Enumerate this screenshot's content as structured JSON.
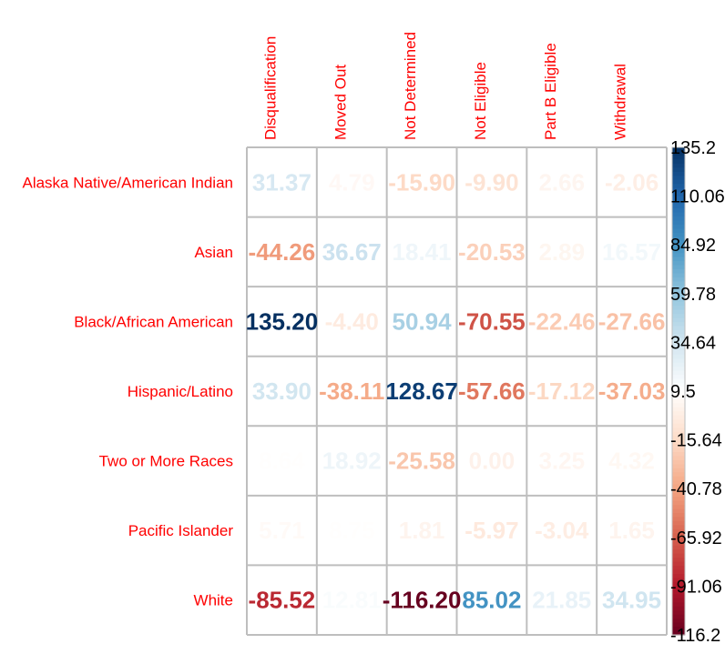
{
  "chart_data": {
    "type": "heatmap",
    "title": "",
    "columns": [
      "Disqualification",
      "Moved Out",
      "Not Determined",
      "Not Eligible",
      "Part B Eligible",
      "Withdrawal"
    ],
    "rows": [
      "Alaska Native/American Indian",
      "Asian",
      "Black/African American",
      "Hispanic/Latino",
      "Two or More Races",
      "Pacific Islander",
      "White"
    ],
    "values": [
      [
        31.37,
        4.79,
        -15.9,
        -9.9,
        2.66,
        -2.06
      ],
      [
        -44.26,
        36.67,
        18.41,
        -20.53,
        2.89,
        16.57
      ],
      [
        135.2,
        -4.4,
        50.94,
        -70.55,
        -22.46,
        -27.66
      ],
      [
        33.9,
        -38.11,
        128.67,
        -57.66,
        -17.12,
        -37.03
      ],
      [
        8.64,
        18.92,
        -25.58,
        0.0,
        3.25,
        4.32
      ],
      [
        5.71,
        8.75,
        1.81,
        -5.97,
        -3.04,
        1.65
      ],
      [
        -85.52,
        12.81,
        -116.2,
        85.02,
        21.85,
        34.95
      ]
    ],
    "display_values": [
      [
        "31.37",
        "4.79",
        "-15.90",
        "-9.90",
        "2.66",
        "-2.06"
      ],
      [
        "-44.26",
        "36.67",
        "18.41",
        "-20.53",
        "2.89",
        "16.57"
      ],
      [
        "135.20",
        "-4.40",
        "50.94",
        "-70.55",
        "-22.46",
        "-27.66"
      ],
      [
        "33.90",
        "-38.11",
        "128.67",
        "-57.66",
        "-17.12",
        "-37.03"
      ],
      [
        "8.64",
        "18.92",
        "-25.58",
        "0.00",
        "3.25",
        "4.32"
      ],
      [
        "5.71",
        "8.75",
        "1.81",
        "-5.97",
        "-3.04",
        "1.65"
      ],
      [
        "-85.52",
        "12.81",
        "-116.20",
        "85.02",
        "21.85",
        "34.95"
      ]
    ],
    "colorbar": {
      "min": -116.2,
      "max": 135.2,
      "ticks": [
        "135.2",
        "110.06",
        "84.92",
        "59.78",
        "34.64",
        "9.5",
        "-15.64",
        "-40.78",
        "-65.92",
        "-91.06",
        "-116.2"
      ],
      "colors": [
        "#67001f",
        "#b2182b",
        "#d6604d",
        "#f4a582",
        "#fddbc7",
        "#ffffff",
        "#d1e5f0",
        "#92c5de",
        "#4393c3",
        "#2166ac",
        "#053061"
      ]
    },
    "label_color": "#ff0000",
    "grid": true
  }
}
